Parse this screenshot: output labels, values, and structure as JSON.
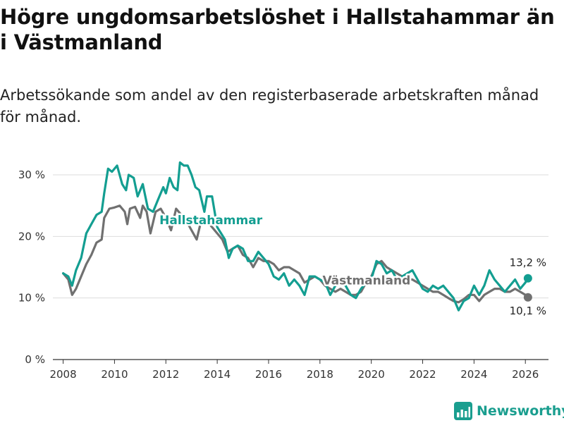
{
  "title": "Högre ungdomsarbetslöshet i Hallstahammar än i Västmanland",
  "subtitle": "Arbetssökande som andel av den registerbaserade arbetskraften månad för månad.",
  "brand": "Newsworthy",
  "colors": {
    "hallstahammar": "#139e91",
    "vastmanland": "#707070",
    "grid": "#dddddd",
    "axis": "#333333"
  },
  "chart_data": {
    "type": "line",
    "title": "Högre ungdomsarbetslöshet i Hallstahammar än i Västmanland",
    "xlabel": "",
    "ylabel": "",
    "xlim": [
      2007.6,
      2026.9
    ],
    "ylim": [
      0,
      30
    ],
    "y_ticks": [
      0,
      10,
      20,
      30
    ],
    "y_tick_labels": [
      "0 %",
      "10 %",
      "20 %",
      "30 %"
    ],
    "x_ticks": [
      2008,
      2010,
      2012,
      2014,
      2016,
      2018,
      2020,
      2022,
      2024,
      2026
    ],
    "x_tick_labels": [
      "2008",
      "2010",
      "2012",
      "2014",
      "2016",
      "2018",
      "2020",
      "2022",
      "2024",
      "2026"
    ],
    "grid": true,
    "series": [
      {
        "name": "Västmanland",
        "label": "Västmanland",
        "end_label": "10,1 %",
        "points": [
          [
            2008.0,
            14.0
          ],
          [
            2008.2,
            13.0
          ],
          [
            2008.35,
            10.5
          ],
          [
            2008.5,
            11.5
          ],
          [
            2008.7,
            13.5
          ],
          [
            2008.9,
            15.5
          ],
          [
            2009.1,
            17.0
          ],
          [
            2009.3,
            19.0
          ],
          [
            2009.5,
            19.5
          ],
          [
            2009.6,
            23.0
          ],
          [
            2009.8,
            24.5
          ],
          [
            2010.0,
            24.7
          ],
          [
            2010.2,
            25.0
          ],
          [
            2010.4,
            24.0
          ],
          [
            2010.5,
            22.0
          ],
          [
            2010.6,
            24.5
          ],
          [
            2010.8,
            24.8
          ],
          [
            2011.0,
            23.0
          ],
          [
            2011.1,
            25.0
          ],
          [
            2011.25,
            24.0
          ],
          [
            2011.4,
            20.5
          ],
          [
            2011.6,
            24.0
          ],
          [
            2011.8,
            24.5
          ],
          [
            2012.0,
            23.0
          ],
          [
            2012.2,
            21.0
          ],
          [
            2012.4,
            24.5
          ],
          [
            2012.6,
            23.5
          ],
          [
            2012.8,
            22.5
          ],
          [
            2013.0,
            21.0
          ],
          [
            2013.2,
            19.5
          ],
          [
            2013.4,
            23.0
          ],
          [
            2013.6,
            22.5
          ],
          [
            2013.8,
            21.5
          ],
          [
            2014.0,
            20.5
          ],
          [
            2014.2,
            19.5
          ],
          [
            2014.4,
            17.5
          ],
          [
            2014.6,
            18.0
          ],
          [
            2014.8,
            18.5
          ],
          [
            2015.0,
            17.0
          ],
          [
            2015.2,
            16.5
          ],
          [
            2015.4,
            15.0
          ],
          [
            2015.6,
            16.5
          ],
          [
            2015.8,
            16.0
          ],
          [
            2016.0,
            16.0
          ],
          [
            2016.2,
            15.5
          ],
          [
            2016.4,
            14.5
          ],
          [
            2016.6,
            15.0
          ],
          [
            2016.8,
            15.0
          ],
          [
            2017.0,
            14.5
          ],
          [
            2017.2,
            14.0
          ],
          [
            2017.4,
            12.5
          ],
          [
            2017.6,
            13.0
          ],
          [
            2017.8,
            13.5
          ],
          [
            2018.0,
            13.0
          ],
          [
            2018.2,
            12.0
          ],
          [
            2018.4,
            11.5
          ],
          [
            2018.6,
            11.0
          ],
          [
            2018.8,
            11.5
          ],
          [
            2019.0,
            11.0
          ],
          [
            2019.2,
            10.5
          ],
          [
            2019.4,
            10.5
          ],
          [
            2019.6,
            11.0
          ],
          [
            2019.8,
            12.5
          ],
          [
            2020.0,
            13.5
          ],
          [
            2020.2,
            15.5
          ],
          [
            2020.4,
            16.0
          ],
          [
            2020.6,
            15.0
          ],
          [
            2020.8,
            14.5
          ],
          [
            2021.0,
            14.0
          ],
          [
            2021.2,
            13.5
          ],
          [
            2021.4,
            13.0
          ],
          [
            2021.6,
            13.0
          ],
          [
            2021.8,
            12.5
          ],
          [
            2022.0,
            12.0
          ],
          [
            2022.2,
            11.5
          ],
          [
            2022.4,
            11.0
          ],
          [
            2022.6,
            11.0
          ],
          [
            2022.8,
            10.5
          ],
          [
            2023.0,
            10.0
          ],
          [
            2023.2,
            9.5
          ],
          [
            2023.4,
            9.3
          ],
          [
            2023.6,
            9.8
          ],
          [
            2023.8,
            10.5
          ],
          [
            2024.0,
            10.5
          ],
          [
            2024.2,
            9.5
          ],
          [
            2024.4,
            10.5
          ],
          [
            2024.6,
            11.0
          ],
          [
            2024.8,
            11.5
          ],
          [
            2025.0,
            11.5
          ],
          [
            2025.2,
            11.0
          ],
          [
            2025.4,
            11.0
          ],
          [
            2025.6,
            11.5
          ],
          [
            2025.8,
            11.0
          ],
          [
            2026.0,
            10.5
          ],
          [
            2026.1,
            10.1
          ]
        ]
      },
      {
        "name": "Hallstahammar",
        "label": "Hallstahammar",
        "end_label": "13,2 %",
        "points": [
          [
            2008.0,
            14.0
          ],
          [
            2008.2,
            13.5
          ],
          [
            2008.35,
            12.0
          ],
          [
            2008.5,
            14.5
          ],
          [
            2008.7,
            16.5
          ],
          [
            2008.9,
            20.5
          ],
          [
            2009.1,
            22.0
          ],
          [
            2009.3,
            23.5
          ],
          [
            2009.5,
            24.0
          ],
          [
            2009.6,
            27.0
          ],
          [
            2009.75,
            31.0
          ],
          [
            2009.9,
            30.5
          ],
          [
            2010.1,
            31.5
          ],
          [
            2010.3,
            28.5
          ],
          [
            2010.45,
            27.5
          ],
          [
            2010.55,
            30.0
          ],
          [
            2010.75,
            29.5
          ],
          [
            2010.9,
            26.5
          ],
          [
            2011.1,
            28.5
          ],
          [
            2011.3,
            24.5
          ],
          [
            2011.5,
            24.0
          ],
          [
            2011.7,
            26.0
          ],
          [
            2011.9,
            28.0
          ],
          [
            2012.0,
            27.0
          ],
          [
            2012.15,
            29.5
          ],
          [
            2012.3,
            28.0
          ],
          [
            2012.45,
            27.5
          ],
          [
            2012.55,
            32.0
          ],
          [
            2012.7,
            31.5
          ],
          [
            2012.85,
            31.5
          ],
          [
            2013.0,
            30.0
          ],
          [
            2013.15,
            28.0
          ],
          [
            2013.3,
            27.5
          ],
          [
            2013.5,
            24.0
          ],
          [
            2013.6,
            26.5
          ],
          [
            2013.8,
            26.5
          ],
          [
            2014.0,
            21.5
          ],
          [
            2014.15,
            20.5
          ],
          [
            2014.3,
            19.5
          ],
          [
            2014.45,
            16.5
          ],
          [
            2014.6,
            18.0
          ],
          [
            2014.8,
            18.5
          ],
          [
            2015.0,
            18.0
          ],
          [
            2015.2,
            16.0
          ],
          [
            2015.4,
            16.0
          ],
          [
            2015.6,
            17.5
          ],
          [
            2015.8,
            16.5
          ],
          [
            2016.0,
            15.5
          ],
          [
            2016.2,
            13.5
          ],
          [
            2016.4,
            13.0
          ],
          [
            2016.6,
            14.0
          ],
          [
            2016.8,
            12.0
          ],
          [
            2017.0,
            13.0
          ],
          [
            2017.2,
            12.0
          ],
          [
            2017.4,
            10.5
          ],
          [
            2017.6,
            13.5
          ],
          [
            2017.8,
            13.5
          ],
          [
            2018.0,
            13.0
          ],
          [
            2018.2,
            12.5
          ],
          [
            2018.4,
            10.5
          ],
          [
            2018.6,
            12.0
          ],
          [
            2018.8,
            12.5
          ],
          [
            2019.0,
            12.0
          ],
          [
            2019.2,
            10.5
          ],
          [
            2019.4,
            10.0
          ],
          [
            2019.6,
            11.5
          ],
          [
            2019.8,
            12.5
          ],
          [
            2020.0,
            13.0
          ],
          [
            2020.2,
            16.0
          ],
          [
            2020.4,
            15.5
          ],
          [
            2020.6,
            14.0
          ],
          [
            2020.8,
            14.5
          ],
          [
            2021.0,
            13.0
          ],
          [
            2021.2,
            13.5
          ],
          [
            2021.4,
            14.0
          ],
          [
            2021.6,
            14.5
          ],
          [
            2021.8,
            13.0
          ],
          [
            2022.0,
            11.5
          ],
          [
            2022.2,
            11.0
          ],
          [
            2022.4,
            12.0
          ],
          [
            2022.6,
            11.5
          ],
          [
            2022.8,
            12.0
          ],
          [
            2023.0,
            11.0
          ],
          [
            2023.2,
            10.0
          ],
          [
            2023.4,
            8.0
          ],
          [
            2023.6,
            9.5
          ],
          [
            2023.8,
            10.0
          ],
          [
            2024.0,
            12.0
          ],
          [
            2024.2,
            10.5
          ],
          [
            2024.4,
            12.0
          ],
          [
            2024.6,
            14.5
          ],
          [
            2024.8,
            13.0
          ],
          [
            2025.0,
            12.0
          ],
          [
            2025.2,
            11.0
          ],
          [
            2025.4,
            12.0
          ],
          [
            2025.6,
            13.0
          ],
          [
            2025.8,
            11.5
          ],
          [
            2026.0,
            12.5
          ],
          [
            2026.1,
            13.2
          ]
        ]
      }
    ]
  }
}
